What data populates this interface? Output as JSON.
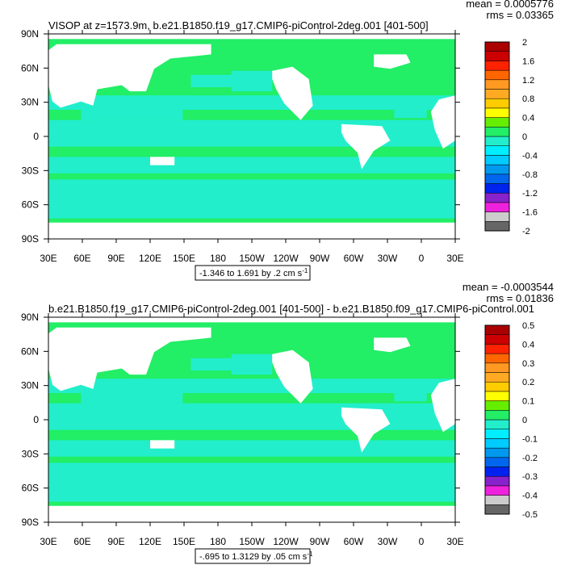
{
  "colors": {
    "land": "#ffffff",
    "ocean_light": "#22ee66",
    "ocean_cyan": "#22eecc",
    "frame": "#000000",
    "scale": [
      "#666666",
      "#cccccc",
      "#ee22dd",
      "#8822cc",
      "#0022ee",
      "#0066ee",
      "#0099ee",
      "#00ccff",
      "#00eeff",
      "#22eecc",
      "#22ee66",
      "#66ee00",
      "#ffff00",
      "#ffcc00",
      "#ffaa22",
      "#ff9922",
      "#ff6600",
      "#ff2200",
      "#cc0000",
      "#aa0000"
    ]
  },
  "chart_data": [
    {
      "type": "heatmap",
      "title": "VISOP at z=1573.9m, b.e21.B1850.f19_g17.CMIP6-piControl-2deg.001 [401-500]",
      "stats": [
        "mean = 0.0005776",
        "rms = 0.03365"
      ],
      "x_ticks": [
        "30E",
        "60E",
        "90E",
        "120E",
        "150E",
        "180",
        "150W",
        "120W",
        "90W",
        "60W",
        "30W",
        "0",
        "30E"
      ],
      "y_ticks": [
        "90N",
        "60N",
        "30N",
        "0",
        "30S",
        "60S",
        "90S"
      ],
      "colorbar_labels": [
        "2",
        "1.6",
        "1.2",
        "0.8",
        "0.4",
        "0",
        "-0.4",
        "-0.8",
        "-1.2",
        "-1.6",
        "-2"
      ],
      "range_note": "-1.346 to 1.691 by .2 cm s",
      "range_unit_exp": "-1"
    },
    {
      "type": "heatmap",
      "title": "b.e21.B1850.f19_g17.CMIP6-piControl-2deg.001 [401-500] - b.e21.B1850.f09_g17.CMIP6-piControl.001",
      "stats": [
        "mean = -0.0003544",
        "rms = 0.01836"
      ],
      "x_ticks": [
        "30E",
        "60E",
        "90E",
        "120E",
        "150E",
        "180",
        "150W",
        "120W",
        "90W",
        "60W",
        "30W",
        "0",
        "30E"
      ],
      "y_ticks": [
        "90N",
        "60N",
        "30N",
        "0",
        "30S",
        "60S",
        "90S"
      ],
      "colorbar_labels": [
        "0.5",
        "0.4",
        "0.3",
        "0.2",
        "0.1",
        "0",
        "-0.1",
        "-0.2",
        "-0.3",
        "-0.4",
        "-0.5"
      ],
      "range_note": "-.695 to 1.3129 by .05 cm s",
      "range_unit_exp": "-1"
    }
  ]
}
